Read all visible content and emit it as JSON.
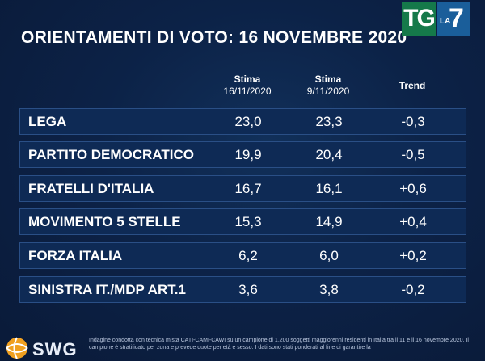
{
  "title": "ORIENTAMENTI DI VOTO: 16 NOVEMBRE 2020",
  "logo": {
    "tg": "TG",
    "la": "LA",
    "seven": "7"
  },
  "columns": [
    {
      "line1": "Stima",
      "line2": "16/11/2020"
    },
    {
      "line1": "Stima",
      "line2": "9/11/2020"
    },
    {
      "line1": "Trend",
      "line2": ""
    }
  ],
  "rows": [
    {
      "party": "LEGA",
      "current": "23,0",
      "previous": "23,3",
      "trend": "-0,3"
    },
    {
      "party": "PARTITO DEMOCRATICO",
      "current": "19,9",
      "previous": "20,4",
      "trend": "-0,5"
    },
    {
      "party": "FRATELLI D'ITALIA",
      "current": "16,7",
      "previous": "16,1",
      "trend": "+0,6"
    },
    {
      "party": "MOVIMENTO 5 STELLE",
      "current": "15,3",
      "previous": "14,9",
      "trend": "+0,4"
    },
    {
      "party": "FORZA ITALIA",
      "current": "6,2",
      "previous": "6,0",
      "trend": "+0,2"
    },
    {
      "party": "SINISTRA IT./MDP ART.1",
      "current": "3,6",
      "previous": "3,8",
      "trend": "-0,2"
    }
  ],
  "footer": {
    "brand": "SWG",
    "note": "Indagine condotta con tecnica mista CATI-CAMI-CAWI su un campione di 1.200 soggetti maggiorenni residenti in Italia tra il 11 e il 16 novembre 2020. Il campione è stratificato per zona e prevede quote per età e sesso. I dati sono stati ponderati al fine di garantire la"
  },
  "colors": {
    "background": "#0b1a33",
    "row_fill": "#0e2a55",
    "row_border": "#2a4f86",
    "tg_green": "#15794a",
    "la7_blue": "#1a5e9a",
    "swg_orange": "#f0a020"
  }
}
